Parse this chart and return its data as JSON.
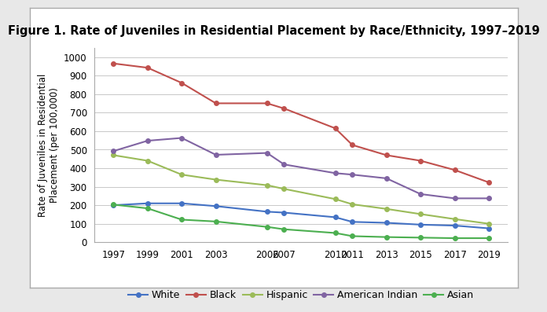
{
  "title": "Figure 1. Rate of Juveniles in Residential Placement by Race/Ethnicity, 1997–2019",
  "ylabel": "Rate of Juveniles in Residential\nPlacement (per 100,000)",
  "years": [
    1997,
    1999,
    2001,
    2003,
    2006,
    2007,
    2010,
    2011,
    2013,
    2015,
    2017,
    2019
  ],
  "series": {
    "White": {
      "values": [
        200,
        210,
        210,
        195,
        165,
        160,
        135,
        110,
        105,
        95,
        90,
        75
      ],
      "color": "#4472C4",
      "marker": "o"
    },
    "Black": {
      "values": [
        965,
        942,
        860,
        750,
        750,
        722,
        615,
        525,
        470,
        440,
        390,
        323
      ],
      "color": "#C0504D",
      "marker": "o"
    },
    "Hispanic": {
      "values": [
        470,
        440,
        365,
        338,
        308,
        288,
        233,
        205,
        180,
        152,
        125,
        100
      ],
      "color": "#9BBB59",
      "marker": "o"
    },
    "American Indian": {
      "values": [
        492,
        548,
        563,
        472,
        482,
        420,
        373,
        365,
        345,
        260,
        237,
        237
      ],
      "color": "#8064A2",
      "marker": "o"
    },
    "Asian": {
      "values": [
        203,
        183,
        122,
        112,
        83,
        70,
        50,
        33,
        28,
        25,
        22,
        22
      ],
      "color": "#4CAF50",
      "marker": "o"
    }
  },
  "ylim": [
    0,
    1050
  ],
  "yticks": [
    0,
    100,
    200,
    300,
    400,
    500,
    600,
    700,
    800,
    900,
    1000
  ],
  "outer_bg": "#E8E8E8",
  "inner_bg": "#FFFFFF",
  "grid_color": "#C8C8C8",
  "title_fontsize": 10.5,
  "axis_fontsize": 8.5,
  "legend_fontsize": 9,
  "tick_fontsize": 8.5
}
